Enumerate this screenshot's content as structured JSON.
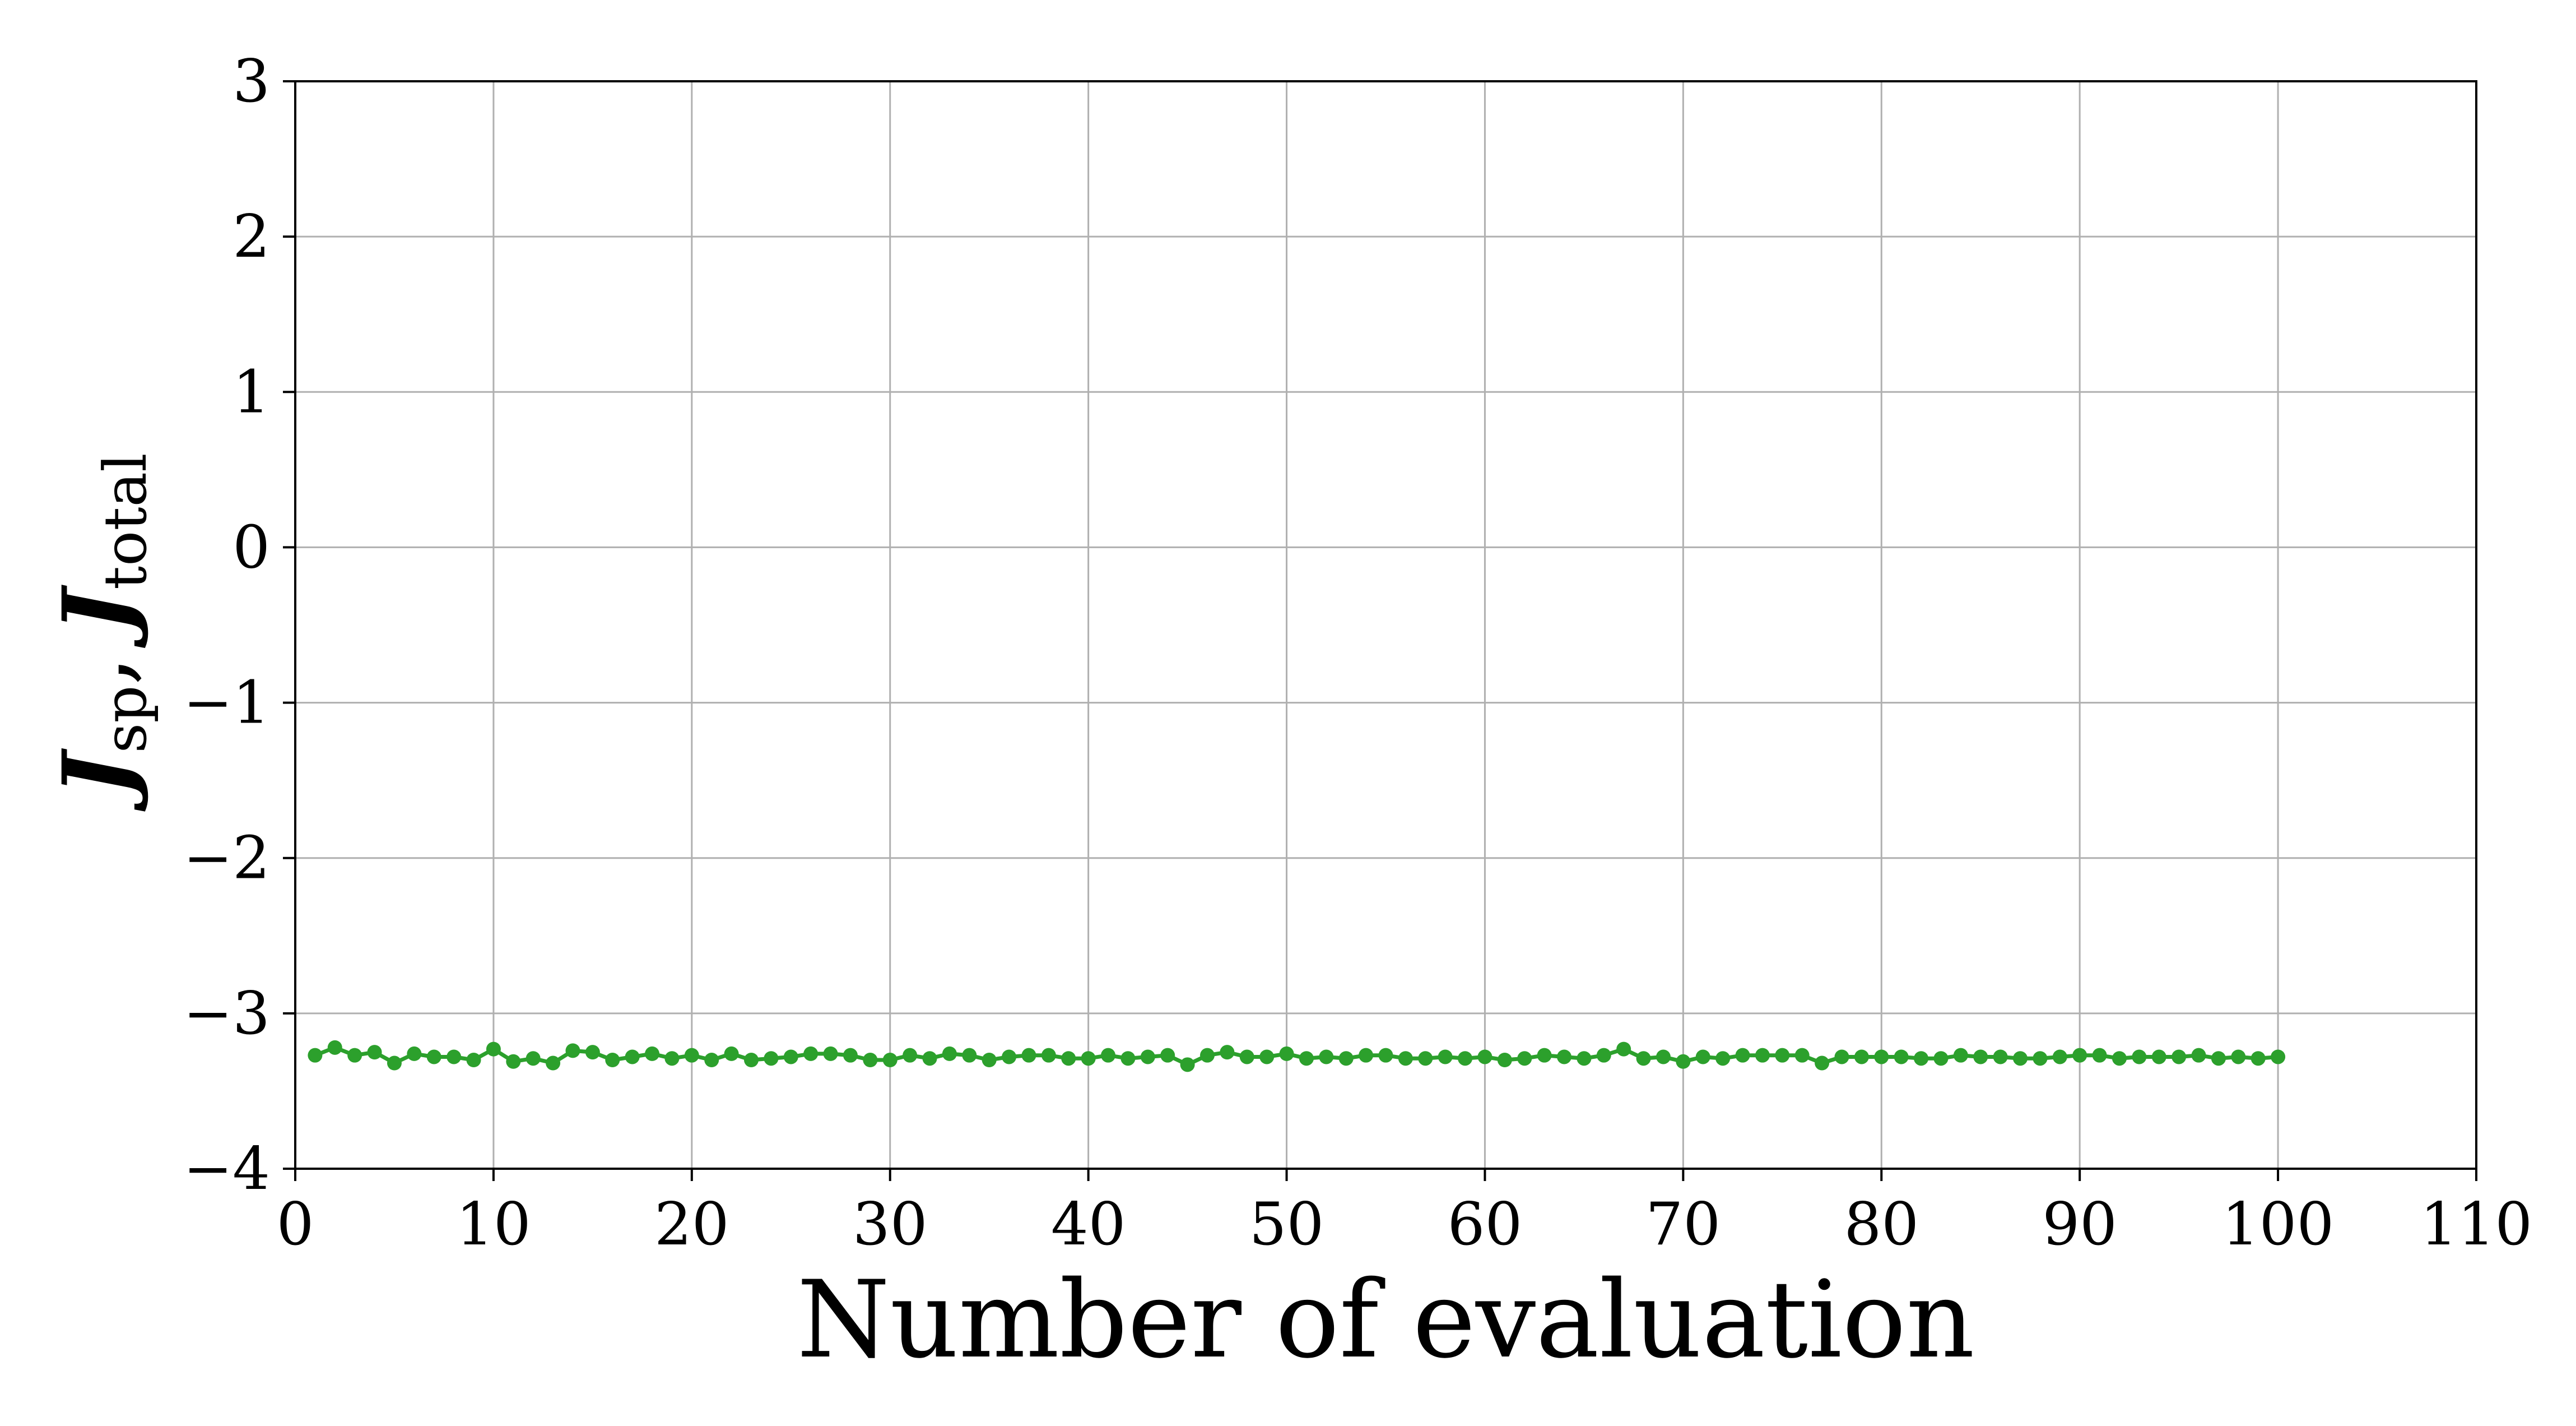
{
  "chart_data": {
    "type": "scatter",
    "xlabel": "Number of evaluation",
    "ylabel": {
      "symbol": "J",
      "sub1": "sp",
      "separator": ",",
      "sub2": "total"
    },
    "xlim": [
      0,
      110
    ],
    "ylim": [
      -4,
      3
    ],
    "xticks": [
      0,
      10,
      20,
      30,
      40,
      50,
      60,
      70,
      80,
      90,
      100,
      110
    ],
    "yticks": [
      3,
      2,
      1,
      0,
      -1,
      -2,
      -3,
      -4
    ],
    "xtick_labels": [
      "0",
      "10",
      "20",
      "30",
      "40",
      "50",
      "60",
      "70",
      "80",
      "90",
      "100",
      "110"
    ],
    "ytick_labels": [
      "3",
      "2",
      "1",
      "0",
      "−1",
      "−2",
      "−3",
      "−4"
    ],
    "grid": true,
    "series": [
      {
        "color": "#2ca02c",
        "line": true,
        "marker": "circle",
        "x": [
          1,
          2,
          3,
          4,
          5,
          6,
          7,
          8,
          9,
          10,
          11,
          12,
          13,
          14,
          15,
          16,
          17,
          18,
          19,
          20,
          21,
          22,
          23,
          24,
          25,
          26,
          27,
          28,
          29,
          30,
          31,
          32,
          33,
          34,
          35,
          36,
          37,
          38,
          39,
          40,
          41,
          42,
          43,
          44,
          45,
          46,
          47,
          48,
          49,
          50,
          51,
          52,
          53,
          54,
          55,
          56,
          57,
          58,
          59,
          60,
          61,
          62,
          63,
          64,
          65,
          66,
          67,
          68,
          69,
          70,
          71,
          72,
          73,
          74,
          75,
          76,
          77,
          78,
          79,
          80,
          81,
          82,
          83,
          84,
          85,
          86,
          87,
          88,
          89,
          90,
          91,
          92,
          93,
          94,
          95,
          96,
          97,
          98,
          99,
          100
        ],
        "y": [
          -3.27,
          -3.22,
          -3.27,
          -3.25,
          -3.32,
          -3.26,
          -3.28,
          -3.28,
          -3.3,
          -3.23,
          -3.31,
          -3.29,
          -3.32,
          -3.24,
          -3.25,
          -3.3,
          -3.28,
          -3.26,
          -3.29,
          -3.27,
          -3.3,
          -3.26,
          -3.3,
          -3.29,
          -3.28,
          -3.26,
          -3.26,
          -3.27,
          -3.3,
          -3.3,
          -3.27,
          -3.29,
          -3.26,
          -3.27,
          -3.3,
          -3.28,
          -3.27,
          -3.27,
          -3.29,
          -3.29,
          -3.27,
          -3.29,
          -3.28,
          -3.27,
          -3.33,
          -3.27,
          -3.25,
          -3.28,
          -3.28,
          -3.26,
          -3.29,
          -3.28,
          -3.29,
          -3.27,
          -3.27,
          -3.29,
          -3.29,
          -3.28,
          -3.29,
          -3.28,
          -3.3,
          -3.29,
          -3.27,
          -3.28,
          -3.29,
          -3.27,
          -3.23,
          -3.29,
          -3.28,
          -3.31,
          -3.28,
          -3.29,
          -3.27,
          -3.27,
          -3.27,
          -3.27,
          -3.32,
          -3.28,
          -3.28,
          -3.28,
          -3.28,
          -3.29,
          -3.29,
          -3.27,
          -3.28,
          -3.28,
          -3.29,
          -3.29,
          -3.28,
          -3.27,
          -3.27,
          -3.29,
          -3.28,
          -3.28,
          -3.28,
          -3.27,
          -3.29,
          -3.28,
          -3.29,
          -3.28
        ]
      }
    ]
  }
}
